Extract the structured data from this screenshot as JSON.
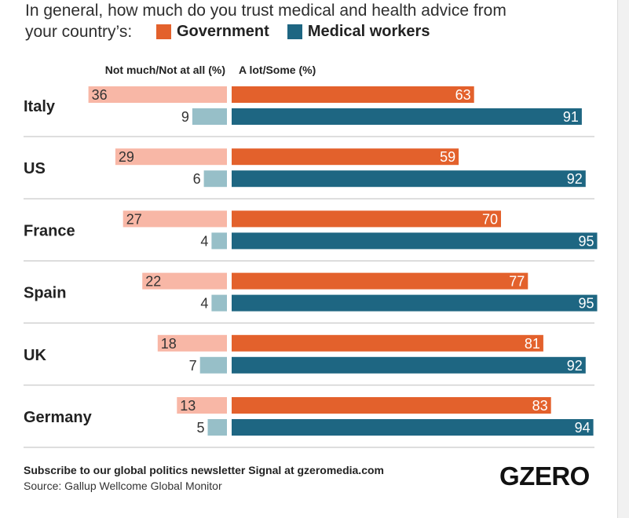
{
  "title": "In general, how much do you trust medical and health advice from your country’s:",
  "title_line1": "In general, how much do you trust medical and health advice from",
  "title_line2": "your country’s:",
  "legend": [
    {
      "label": "Government",
      "color": "#e3612c"
    },
    {
      "label": "Medical workers",
      "color": "#1e6682"
    }
  ],
  "column_headers": {
    "left": "Not much/Not at all (%)",
    "right": "A lot/Some (%)"
  },
  "colors": {
    "government_positive": "#e3612c",
    "government_negative": "#f8b7a6",
    "medical_positive": "#1e6682",
    "medical_negative": "#97bfc8",
    "separator": "#bdbdbd"
  },
  "chart_data": {
    "type": "bar",
    "orientation": "horizontal-diverging",
    "categories": [
      "Italy",
      "US",
      "France",
      "Spain",
      "UK",
      "Germany"
    ],
    "series": [
      {
        "name": "Government",
        "group": "A lot/Some (%)",
        "values": [
          63,
          59,
          70,
          77,
          81,
          83
        ]
      },
      {
        "name": "Government",
        "group": "Not much/Not at all (%)",
        "values": [
          36,
          29,
          27,
          22,
          18,
          13
        ]
      },
      {
        "name": "Medical workers",
        "group": "A lot/Some (%)",
        "values": [
          91,
          92,
          95,
          95,
          92,
          94
        ]
      },
      {
        "name": "Medical workers",
        "group": "Not much/Not at all (%)",
        "values": [
          9,
          6,
          4,
          4,
          7,
          5
        ]
      }
    ],
    "xlim_right": [
      0,
      100
    ],
    "grid": false,
    "legend_position": "top"
  },
  "footer": {
    "subscribe": "Subscribe to our global politics newsletter Signal at gzeromedia.com",
    "source": "Source: Gallup Wellcome Global Monitor"
  },
  "logo": "GZERO"
}
